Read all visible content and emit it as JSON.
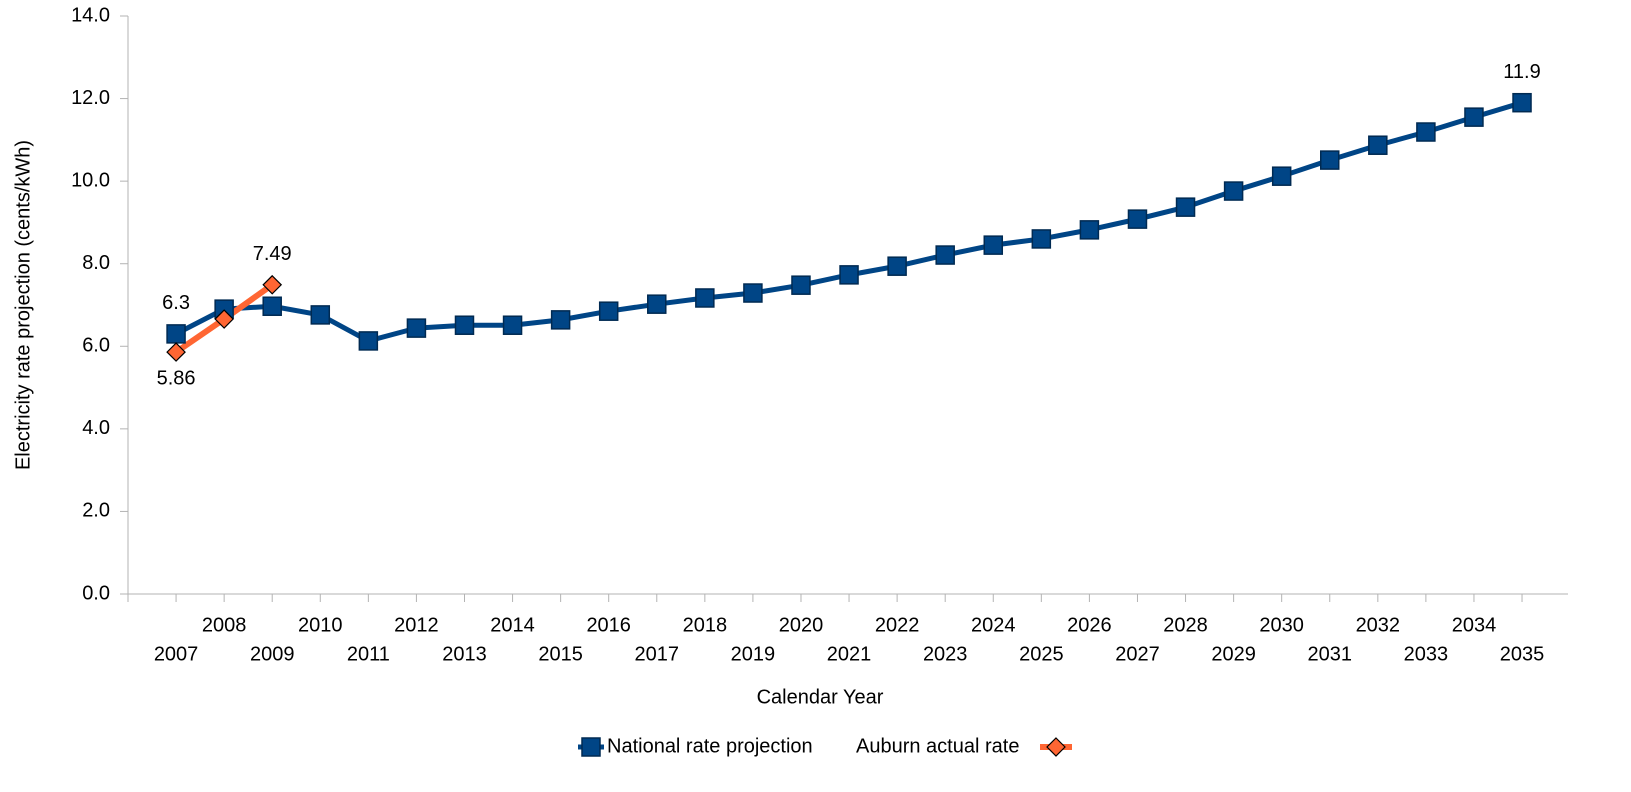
{
  "chart_data": {
    "type": "line",
    "x_label": "Calendar Year",
    "y_label": "Electricity rate projection (cents/kWh)",
    "categories": [
      "2007",
      "2008",
      "2009",
      "2010",
      "2011",
      "2012",
      "2013",
      "2014",
      "2015",
      "2016",
      "2017",
      "2018",
      "2019",
      "2020",
      "2021",
      "2022",
      "2023",
      "2024",
      "2025",
      "2026",
      "2027",
      "2028",
      "2029",
      "2030",
      "2031",
      "2032",
      "2033",
      "2034",
      "2035"
    ],
    "series": [
      {
        "name": "National rate projection",
        "color": "#004586",
        "marker": "square",
        "values": [
          6.3,
          6.9,
          6.97,
          6.76,
          6.13,
          6.44,
          6.51,
          6.51,
          6.64,
          6.85,
          7.02,
          7.17,
          7.29,
          7.48,
          7.73,
          7.94,
          8.21,
          8.45,
          8.6,
          8.82,
          9.08,
          9.37,
          9.76,
          10.12,
          10.51,
          10.87,
          11.19,
          11.55,
          11.9
        ],
        "value_labels": [
          "6.3",
          null,
          null,
          null,
          null,
          null,
          null,
          null,
          null,
          null,
          null,
          null,
          null,
          null,
          null,
          null,
          null,
          null,
          null,
          null,
          null,
          null,
          null,
          null,
          null,
          null,
          null,
          null,
          "11.9"
        ]
      },
      {
        "name": "Auburn actual rate",
        "color": "#ff6633",
        "marker": "diamond",
        "values": [
          5.86,
          6.66,
          7.49,
          null,
          null,
          null,
          null,
          null,
          null,
          null,
          null,
          null,
          null,
          null,
          null,
          null,
          null,
          null,
          null,
          null,
          null,
          null,
          null,
          null,
          null,
          null,
          null,
          null,
          null
        ],
        "value_labels": [
          "5.86",
          null,
          "7.49",
          null,
          null,
          null,
          null,
          null,
          null,
          null,
          null,
          null,
          null,
          null,
          null,
          null,
          null,
          null,
          null,
          null,
          null,
          null,
          null,
          null,
          null,
          null,
          null,
          null,
          null
        ]
      }
    ],
    "ylim": [
      0,
      14
    ],
    "yticks": [
      {
        "value": 0,
        "label": "0.0"
      },
      {
        "value": 2,
        "label": "2.0"
      },
      {
        "value": 4,
        "label": "4.0"
      },
      {
        "value": 6,
        "label": "6.0"
      },
      {
        "value": 8,
        "label": "8.0"
      },
      {
        "value": 10,
        "label": "10.0"
      },
      {
        "value": 12,
        "label": "12.0"
      },
      {
        "value": 14,
        "label": "14.0"
      }
    ],
    "grid": false,
    "legend": "bottom"
  }
}
